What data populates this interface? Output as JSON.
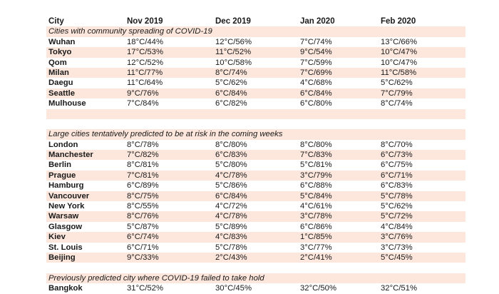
{
  "table": {
    "headers": [
      "City",
      "Nov 2019",
      "Dec 2019",
      "Jan 2020",
      "Feb 2020"
    ],
    "sections": [
      {
        "title": "Cities with community spreading of COVID-19",
        "rows": [
          [
            "Wuhan",
            "18°C/44%",
            "12°C/56%",
            "7°C/74%",
            "13°C/66%"
          ],
          [
            "Tokyo",
            "17°C/53%",
            "11°C/52%",
            "9°C/54%",
            "10°C/47%"
          ],
          [
            "Qom",
            "12°C/52%",
            "10°C/58%",
            "7°C/59%",
            "10°C/47%"
          ],
          [
            "Milan",
            "11°C/77%",
            "8°C/74%",
            "7°C/69%",
            "11°C/58%"
          ],
          [
            "Daegu",
            "11°C/64%",
            "5°C/62%",
            "4°C/68%",
            "5°C/62%"
          ],
          [
            "Seattle",
            "9°C/76%",
            "6°C/84%",
            "6°C/84%",
            "7°C/79%"
          ],
          [
            "Mulhouse",
            "7°C/84%",
            "6°C/82%",
            "6°C/80%",
            "8°C/74%"
          ]
        ]
      },
      {
        "title": "Large cities tentatively predicted to be at risk in the coming weeks",
        "rows": [
          [
            "London",
            "8°C/78%",
            "8°C/80%",
            "8°C/80%",
            "8°C/70%"
          ],
          [
            "Manchester",
            "7°C/82%",
            "6°C/83%",
            "7°C/83%",
            "6°C/73%"
          ],
          [
            "Berlin",
            "8°C/81%",
            "5°C/80%",
            "5°C/81%",
            "6°C/75%"
          ],
          [
            "Prague",
            "7°C/81%",
            "4°C/78%",
            "3°C/79%",
            "6°C/71%"
          ],
          [
            "Hamburg",
            "6°C/89%",
            "5°C/86%",
            "6°C/88%",
            "6°C/83%"
          ],
          [
            "Vancouver",
            "8°C/75%",
            "6°C/84%",
            "5°C/84%",
            "5°C/78%"
          ],
          [
            "New York",
            "8°C/55%",
            "4°C/72%",
            "4°C/61%",
            "5°C/62%"
          ],
          [
            "Warsaw",
            "8°C/76%",
            "4°C/78%",
            "3°C/78%",
            "5°C/72%"
          ],
          [
            "Glasgow",
            "5°C/87%",
            "5°C/89%",
            "6°C/86%",
            "4°C/84%"
          ],
          [
            "Kiev",
            "6°C/74%",
            "4°C/83%",
            "1°C/85%",
            "3°C/76%"
          ],
          [
            "St. Louis",
            "6°C/71%",
            "5°C/78%",
            "3°C/77%",
            "3°C/73%"
          ],
          [
            "Beijing",
            "9°C/33%",
            "2°C/43%",
            "2°C/41%",
            "5°C/45%"
          ]
        ]
      },
      {
        "title": "Previously predicted city where COVID-19 failed to take hold",
        "rows": [
          [
            "Bangkok",
            "31°C/52%",
            "30°C/45%",
            "32°C/50%",
            "32°C/51%"
          ]
        ]
      }
    ]
  }
}
